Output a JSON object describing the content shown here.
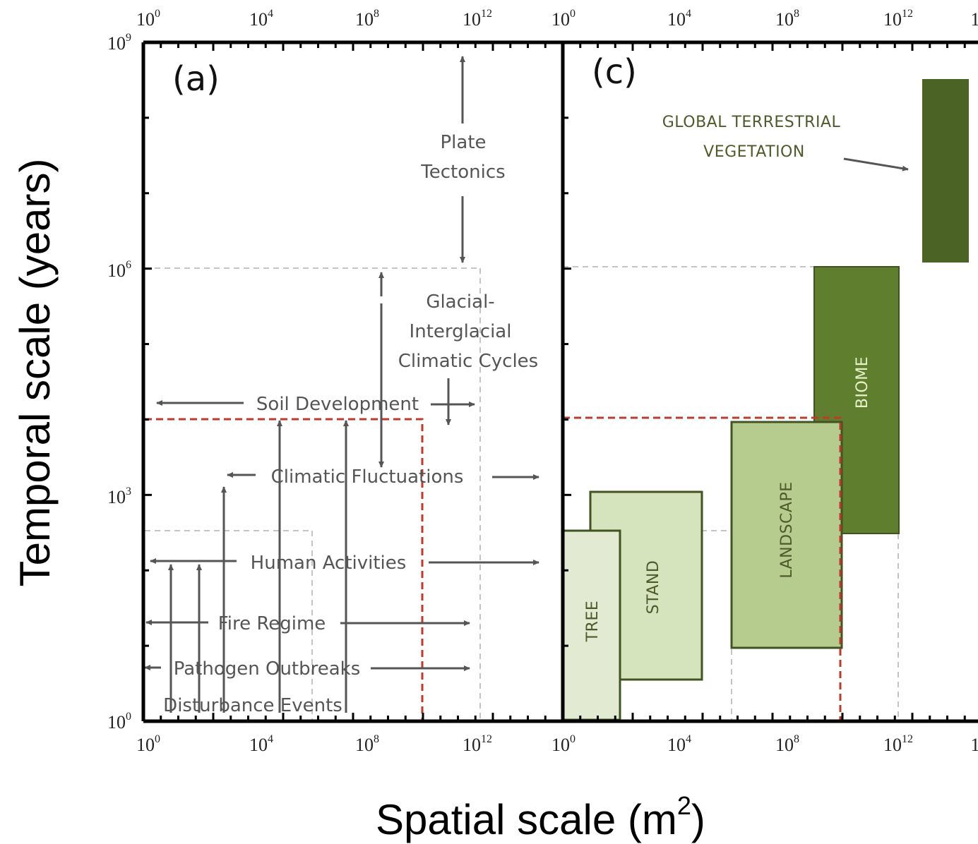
{
  "axes": {
    "x_ticks_a": [
      "10^0",
      "10^4",
      "10^8",
      "10^12"
    ],
    "x_ticks_c": [
      "10^0",
      "10^4",
      "10^8",
      "10^12",
      "1"
    ],
    "y_ticks": [
      "10^9",
      "10^6",
      "10^3",
      "10^0"
    ],
    "x_title": "Spatial scale (m",
    "x_title_sup": "2",
    "x_title_end": ")",
    "y_title": "Temporal scale (years)"
  },
  "panel_a": {
    "label": "(a)",
    "processes": [
      {
        "id": "plate",
        "lines": [
          "Plate",
          "Tectonics"
        ]
      },
      {
        "id": "glacial",
        "lines": [
          "Glacial-",
          "Interglacial",
          "Climatic Cycles"
        ]
      },
      {
        "id": "soil",
        "lines": [
          "Soil Development"
        ]
      },
      {
        "id": "climatic",
        "lines": [
          "Climatic Fluctuations"
        ]
      },
      {
        "id": "human",
        "lines": [
          "Human Activities"
        ]
      },
      {
        "id": "fire",
        "lines": [
          "Fire Regime"
        ]
      },
      {
        "id": "pathogen",
        "lines": [
          "Pathogen Outbreaks"
        ]
      },
      {
        "id": "disturbance",
        "lines": [
          "Disturbance Events"
        ]
      }
    ]
  },
  "panel_c": {
    "label": "(c)",
    "global_label": [
      "GLOBAL TERRESTRIAL",
      "VEGETATION"
    ],
    "units": [
      {
        "id": "tree",
        "label": "TREE",
        "color": "#e2ebd2"
      },
      {
        "id": "stand",
        "label": "STAND",
        "color": "#d6e4bd"
      },
      {
        "id": "landscape",
        "label": "LANDSCAPE",
        "color": "#b5cc8e"
      },
      {
        "id": "biome",
        "label": "BIOME",
        "color": "#5f7f2e"
      },
      {
        "id": "global",
        "label": "",
        "color": "#4b6325"
      }
    ]
  },
  "colors": {
    "frame": "#000000",
    "arrow": "#555555",
    "red_box": "#c0392b",
    "grid": "#c4c4c4"
  }
}
